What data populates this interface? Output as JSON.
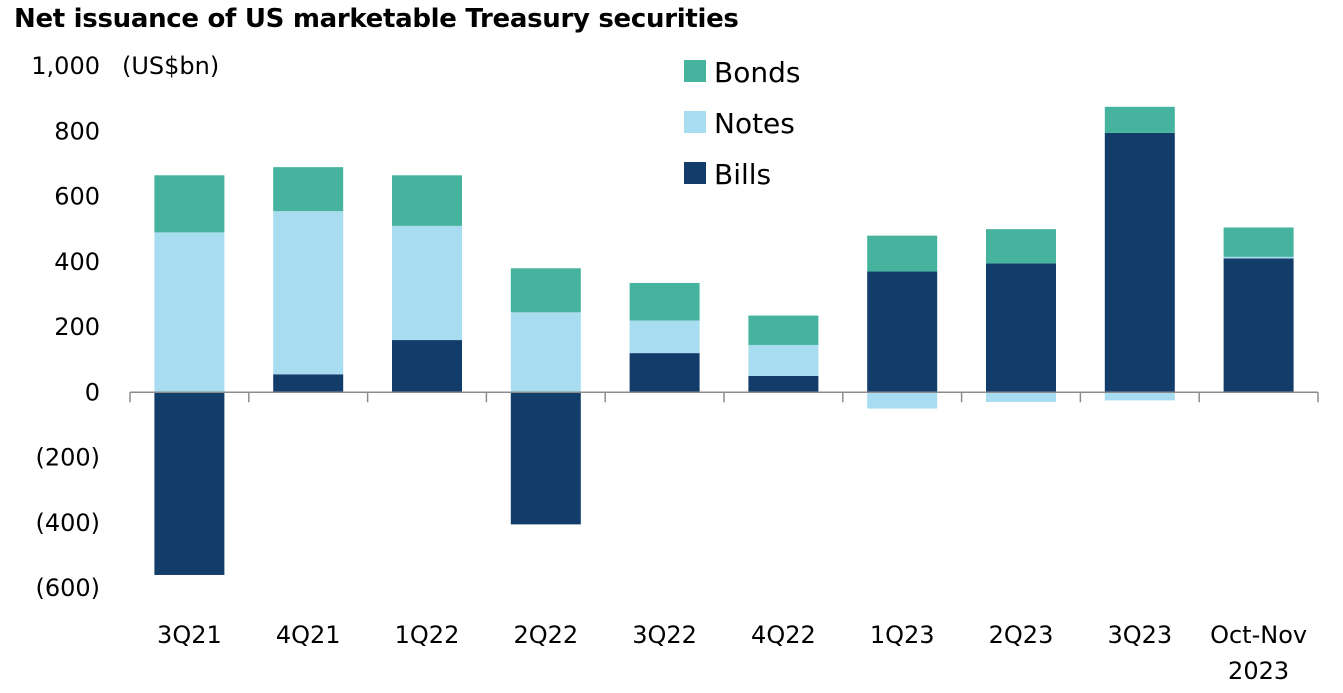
{
  "chart_data": {
    "type": "bar",
    "stacked": true,
    "title": "Net issuance of US marketable Treasury securities",
    "unit_label": "(US$bn)",
    "categories": [
      "3Q21",
      "4Q21",
      "1Q22",
      "2Q22",
      "3Q22",
      "4Q22",
      "1Q23",
      "2Q23",
      "3Q23",
      "Oct-Nov 2023"
    ],
    "category_lines": [
      [
        "3Q21"
      ],
      [
        "4Q21"
      ],
      [
        "1Q22"
      ],
      [
        "2Q22"
      ],
      [
        "3Q22"
      ],
      [
        "4Q22"
      ],
      [
        "1Q23"
      ],
      [
        "2Q23"
      ],
      [
        "3Q23"
      ],
      [
        "Oct-Nov",
        "2023"
      ]
    ],
    "series": [
      {
        "name": "Bills",
        "color": "#123d6b",
        "values": [
          -560,
          55,
          160,
          -405,
          120,
          50,
          370,
          395,
          795,
          410
        ]
      },
      {
        "name": "Notes",
        "color": "#a8dcf0",
        "values": [
          490,
          500,
          350,
          245,
          100,
          95,
          -50,
          -30,
          -25,
          5
        ]
      },
      {
        "name": "Bonds",
        "color": "#45b39d",
        "values": [
          175,
          135,
          155,
          135,
          115,
          90,
          110,
          105,
          80,
          90
        ]
      }
    ],
    "ylim": [
      -600,
      1000
    ],
    "yticks": [
      1000,
      800,
      600,
      400,
      200,
      0,
      -200,
      -400,
      -600
    ],
    "ytick_labels": [
      "1,000",
      "800",
      "600",
      "400",
      "200",
      "0",
      "(200)",
      "(400)",
      "(600)"
    ],
    "legend": {
      "placement": "top-center",
      "order": [
        "Bonds",
        "Notes",
        "Bills"
      ]
    },
    "grid": false
  }
}
